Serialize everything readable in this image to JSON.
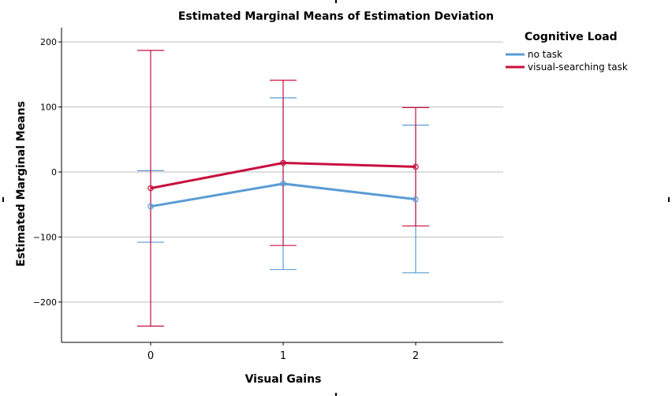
{
  "chart_data": {
    "type": "line",
    "title": "Estimated Marginal Means of Estimation Deviation",
    "xlabel": "Visual Gains",
    "ylabel": "Estimated Marginal Means",
    "categories": [
      "0",
      "1",
      "2"
    ],
    "ylim": [
      -262,
      222
    ],
    "yticks": [
      200,
      100,
      0,
      -100,
      -200
    ],
    "ytick_labels": [
      "200",
      "100",
      "0",
      "−100",
      "−200"
    ],
    "grid": true,
    "legend": {
      "title": "Cognitive Load",
      "position": "right"
    },
    "error_bars": true,
    "series": [
      {
        "name": "no task",
        "color": "#5b9bd5",
        "values": [
          -53,
          -18,
          -42
        ],
        "lower": [
          -108,
          -150,
          -155
        ],
        "upper": [
          2,
          114,
          72
        ]
      },
      {
        "name": "visual-searching task",
        "color": "#c8103e",
        "values": [
          -25,
          14,
          8
        ],
        "lower": [
          -237,
          -113,
          -83
        ],
        "upper": [
          187,
          141,
          99
        ]
      }
    ]
  }
}
